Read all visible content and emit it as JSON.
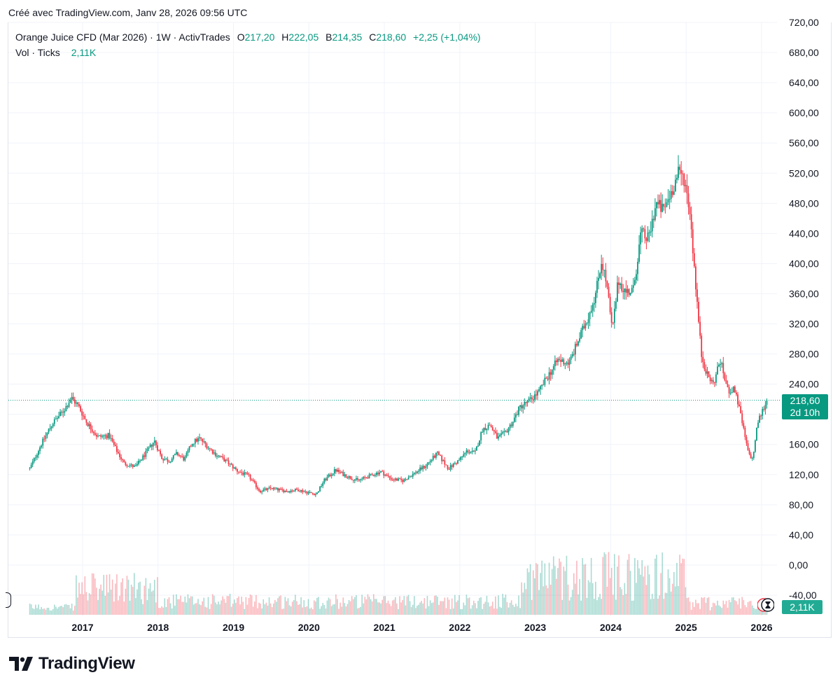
{
  "header": {
    "created_text": "Créé avec TradingView.com, Janv 28, 2026 09:56 UTC"
  },
  "legend": {
    "symbol": "Orange Juice CFD (Mar 2026) · 1W · ActivTrades",
    "o_label": "O",
    "o_value": "217,20",
    "h_label": "H",
    "h_value": "222,05",
    "b_label": "B",
    "b_value": "214,35",
    "c_label": "C",
    "c_value": "218,60",
    "change": "+2,25 (+1,04%)",
    "vol_label": "Vol · Ticks",
    "vol_value": "2,11K"
  },
  "badges": {
    "last_price": "218,60",
    "countdown": "2d 10h",
    "volume": "2,11K"
  },
  "brand": {
    "name": "TradingView"
  },
  "colors": {
    "up": "#089981",
    "down": "#f23645",
    "grid": "#f0f3fa",
    "text": "#131722"
  },
  "chart_data": {
    "type": "candlestick",
    "title": "Orange Juice CFD (Mar 2026) · 1W · ActivTrades",
    "ylim": [
      -40,
      720
    ],
    "y_ticks": [
      "-40,00",
      "0,00",
      "40,00",
      "80,00",
      "120,00",
      "160,00",
      "200,00",
      "240,00",
      "280,00",
      "320,00",
      "360,00",
      "400,00",
      "440,00",
      "480,00",
      "520,00",
      "560,00",
      "600,00",
      "640,00",
      "680,00",
      "720,00"
    ],
    "y_tick_values": [
      -40,
      0,
      40,
      80,
      120,
      160,
      200,
      240,
      280,
      320,
      360,
      400,
      440,
      480,
      520,
      560,
      600,
      640,
      680,
      720
    ],
    "x_ticks": [
      "2017",
      "2018",
      "2019",
      "2020",
      "2021",
      "2022",
      "2023",
      "2024",
      "2025",
      "2026"
    ],
    "x_tick_years": [
      2017,
      2018,
      2019,
      2020,
      2021,
      2022,
      2023,
      2024,
      2025,
      2026
    ],
    "last_price": 218.6,
    "series": [
      {
        "name": "Price (approx. path)",
        "points": [
          [
            2016.3,
            128
          ],
          [
            2016.45,
            160
          ],
          [
            2016.6,
            188
          ],
          [
            2016.75,
            205
          ],
          [
            2016.85,
            222
          ],
          [
            2016.95,
            210
          ],
          [
            2017.05,
            190
          ],
          [
            2017.2,
            170
          ],
          [
            2017.35,
            172
          ],
          [
            2017.45,
            152
          ],
          [
            2017.55,
            135
          ],
          [
            2017.7,
            130
          ],
          [
            2017.85,
            150
          ],
          [
            2017.95,
            165
          ],
          [
            2018.05,
            142
          ],
          [
            2018.15,
            138
          ],
          [
            2018.25,
            148
          ],
          [
            2018.35,
            140
          ],
          [
            2018.45,
            162
          ],
          [
            2018.55,
            168
          ],
          [
            2018.65,
            158
          ],
          [
            2018.75,
            148
          ],
          [
            2018.9,
            138
          ],
          [
            2019.05,
            125
          ],
          [
            2019.2,
            118
          ],
          [
            2019.35,
            98
          ],
          [
            2019.5,
            102
          ],
          [
            2019.7,
            98
          ],
          [
            2019.85,
            100
          ],
          [
            2020.0,
            96
          ],
          [
            2020.1,
            94
          ],
          [
            2020.2,
            112
          ],
          [
            2020.35,
            126
          ],
          [
            2020.5,
            118
          ],
          [
            2020.65,
            112
          ],
          [
            2020.8,
            118
          ],
          [
            2020.95,
            124
          ],
          [
            2021.1,
            114
          ],
          [
            2021.25,
            112
          ],
          [
            2021.4,
            122
          ],
          [
            2021.55,
            132
          ],
          [
            2021.7,
            148
          ],
          [
            2021.85,
            128
          ],
          [
            2022.0,
            140
          ],
          [
            2022.1,
            152
          ],
          [
            2022.2,
            148
          ],
          [
            2022.3,
            180
          ],
          [
            2022.4,
            186
          ],
          [
            2022.5,
            168
          ],
          [
            2022.6,
            175
          ],
          [
            2022.7,
            190
          ],
          [
            2022.8,
            210
          ],
          [
            2022.92,
            218
          ],
          [
            2023.05,
            230
          ],
          [
            2023.15,
            248
          ],
          [
            2023.3,
            272
          ],
          [
            2023.45,
            268
          ],
          [
            2023.6,
            305
          ],
          [
            2023.7,
            330
          ],
          [
            2023.8,
            360
          ],
          [
            2023.88,
            405
          ],
          [
            2023.95,
            370
          ],
          [
            2024.02,
            310
          ],
          [
            2024.1,
            378
          ],
          [
            2024.2,
            362
          ],
          [
            2024.3,
            365
          ],
          [
            2024.4,
            440
          ],
          [
            2024.5,
            432
          ],
          [
            2024.6,
            480
          ],
          [
            2024.7,
            470
          ],
          [
            2024.8,
            495
          ],
          [
            2024.9,
            520
          ],
          [
            2024.97,
            515
          ],
          [
            2025.05,
            470
          ],
          [
            2025.12,
            380
          ],
          [
            2025.2,
            280
          ],
          [
            2025.28,
            252
          ],
          [
            2025.36,
            240
          ],
          [
            2025.45,
            272
          ],
          [
            2025.55,
            232
          ],
          [
            2025.65,
            232
          ],
          [
            2025.72,
            200
          ],
          [
            2025.82,
            150
          ],
          [
            2025.88,
            140
          ],
          [
            2025.95,
            190
          ],
          [
            2026.07,
            218.6
          ]
        ]
      }
    ],
    "volume_note": "Weekly volume (ticks) bars shown in lower pane; latest 2,11K"
  }
}
